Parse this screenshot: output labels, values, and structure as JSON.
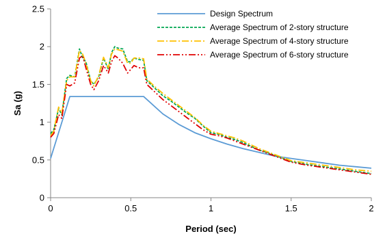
{
  "chart_data": {
    "type": "line",
    "title": "",
    "xlabel": "Period (sec)",
    "ylabel": "Sa (g)",
    "xlim": [
      0,
      2
    ],
    "ylim": [
      0,
      2.5
    ],
    "xticks": [
      0,
      0.5,
      1,
      1.5,
      2
    ],
    "xtick_labels": [
      "0",
      "0.5",
      "1",
      "1.5",
      "2"
    ],
    "yticks": [
      0,
      0.5,
      1,
      1.5,
      2,
      2.5
    ],
    "ytick_labels": [
      "0",
      "0.5",
      "1",
      "1.5",
      "2",
      "2.5"
    ],
    "grid": false,
    "legend_position": "top-right",
    "series": [
      {
        "name": "Design Spectrum",
        "color": "#5b9bd5",
        "dash": "solid",
        "x": [
          0,
          0.12,
          0.58,
          0.7,
          0.8,
          0.9,
          1.0,
          1.1,
          1.2,
          1.3,
          1.4,
          1.5,
          1.6,
          1.7,
          1.8,
          1.9,
          2.0
        ],
        "y": [
          0.52,
          1.34,
          1.34,
          1.11,
          0.97,
          0.86,
          0.78,
          0.71,
          0.65,
          0.6,
          0.55,
          0.52,
          0.49,
          0.46,
          0.43,
          0.41,
          0.39
        ]
      },
      {
        "name": "Average Spectrum of 2-story structure",
        "color": "#00a650",
        "dash": "dashed",
        "x": [
          0,
          0.02,
          0.05,
          0.07,
          0.1,
          0.12,
          0.15,
          0.18,
          0.2,
          0.22,
          0.25,
          0.27,
          0.3,
          0.33,
          0.36,
          0.38,
          0.4,
          0.42,
          0.45,
          0.48,
          0.5,
          0.52,
          0.55,
          0.58,
          0.6,
          0.65,
          0.7,
          0.75,
          0.8,
          0.85,
          0.9,
          0.95,
          1.0,
          1.05,
          1.1,
          1.15,
          1.2,
          1.25,
          1.3,
          1.35,
          1.4,
          1.45,
          1.5,
          1.6,
          1.7,
          1.8,
          1.9,
          2.0
        ],
        "y": [
          0.85,
          0.9,
          1.18,
          1.1,
          1.58,
          1.62,
          1.6,
          1.97,
          1.85,
          1.8,
          1.55,
          1.5,
          1.6,
          1.85,
          1.7,
          1.92,
          2.0,
          1.98,
          1.97,
          1.8,
          1.8,
          1.85,
          1.83,
          1.82,
          1.55,
          1.45,
          1.35,
          1.28,
          1.2,
          1.12,
          1.05,
          0.95,
          0.86,
          0.84,
          0.8,
          0.77,
          0.73,
          0.68,
          0.63,
          0.6,
          0.56,
          0.52,
          0.48,
          0.44,
          0.41,
          0.38,
          0.35,
          0.32
        ]
      },
      {
        "name": "Average Spectrum of 4-story structure",
        "color": "#ffc000",
        "dash": "dashdot",
        "x": [
          0,
          0.02,
          0.05,
          0.07,
          0.1,
          0.12,
          0.15,
          0.18,
          0.2,
          0.22,
          0.25,
          0.27,
          0.3,
          0.33,
          0.36,
          0.38,
          0.4,
          0.42,
          0.45,
          0.48,
          0.5,
          0.52,
          0.55,
          0.58,
          0.6,
          0.65,
          0.7,
          0.75,
          0.8,
          0.85,
          0.9,
          0.95,
          1.0,
          1.05,
          1.1,
          1.15,
          1.2,
          1.25,
          1.3,
          1.35,
          1.4,
          1.45,
          1.5,
          1.6,
          1.7,
          1.8,
          1.9,
          2.0
        ],
        "y": [
          0.82,
          0.88,
          1.2,
          1.12,
          1.55,
          1.6,
          1.6,
          1.95,
          1.9,
          1.78,
          1.55,
          1.48,
          1.62,
          1.86,
          1.72,
          1.9,
          1.97,
          1.96,
          1.94,
          1.78,
          1.78,
          1.85,
          1.85,
          1.84,
          1.57,
          1.47,
          1.38,
          1.3,
          1.22,
          1.14,
          1.06,
          0.96,
          0.88,
          0.85,
          0.82,
          0.79,
          0.75,
          0.7,
          0.65,
          0.61,
          0.57,
          0.53,
          0.49,
          0.46,
          0.43,
          0.4,
          0.37,
          0.35
        ]
      },
      {
        "name": "Average Spectrum of 6-story structure",
        "color": "#e00000",
        "dash": "dashdotdot",
        "x": [
          0,
          0.02,
          0.05,
          0.07,
          0.1,
          0.12,
          0.15,
          0.18,
          0.2,
          0.22,
          0.25,
          0.27,
          0.3,
          0.33,
          0.36,
          0.38,
          0.4,
          0.42,
          0.45,
          0.48,
          0.5,
          0.52,
          0.55,
          0.58,
          0.6,
          0.65,
          0.7,
          0.75,
          0.8,
          0.85,
          0.9,
          0.95,
          1.0,
          1.05,
          1.1,
          1.15,
          1.2,
          1.25,
          1.3,
          1.35,
          1.4,
          1.45,
          1.5,
          1.6,
          1.7,
          1.8,
          1.9,
          2.0
        ],
        "y": [
          0.8,
          0.85,
          1.1,
          1.05,
          1.5,
          1.48,
          1.52,
          1.85,
          1.88,
          1.72,
          1.5,
          1.43,
          1.55,
          1.75,
          1.65,
          1.8,
          1.88,
          1.85,
          1.78,
          1.65,
          1.7,
          1.75,
          1.72,
          1.72,
          1.5,
          1.4,
          1.3,
          1.22,
          1.14,
          1.06,
          0.98,
          0.9,
          0.84,
          0.82,
          0.79,
          0.75,
          0.71,
          0.67,
          0.63,
          0.59,
          0.55,
          0.51,
          0.47,
          0.43,
          0.4,
          0.37,
          0.34,
          0.31
        ]
      }
    ]
  }
}
